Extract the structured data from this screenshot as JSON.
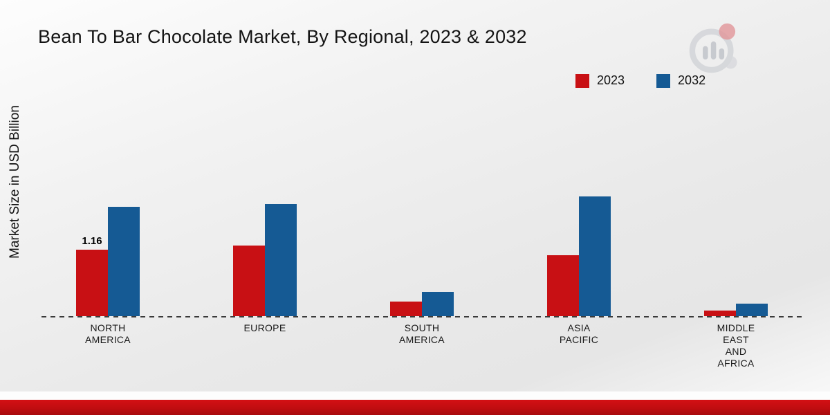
{
  "title": "Bean To Bar Chocolate Market, By Regional, 2023 & 2032",
  "ylabel": "Market Size in USD Billion",
  "legend": [
    {
      "label": "2023",
      "color": "#c81014"
    },
    {
      "label": "2032",
      "color": "#155a94"
    }
  ],
  "colors": {
    "accent_red": "#c81014",
    "accent_blue": "#155a94",
    "footer_red": "#c00d10"
  },
  "chart_data": {
    "type": "bar",
    "categories": [
      "NORTH AMERICA",
      "EUROPE",
      "SOUTH AMERICA",
      "ASIA PACIFIC",
      "MIDDLE EAST AND AFRICA"
    ],
    "series": [
      {
        "name": "2023",
        "color": "#c81014",
        "values": [
          1.16,
          1.23,
          0.25,
          1.06,
          0.1
        ]
      },
      {
        "name": "2032",
        "color": "#155a94",
        "values": [
          1.91,
          1.96,
          0.42,
          2.09,
          0.22
        ]
      }
    ],
    "annotations": [
      {
        "category_index": 0,
        "series_index": 0,
        "text": "1.16"
      }
    ],
    "title": "Bean To Bar Chocolate Market, By Regional, 2023 & 2032",
    "xlabel": "",
    "ylabel": "Market Size in USD Billion",
    "ylim": [
      0,
      2.4
    ],
    "grid": false,
    "legend_position": "top-right",
    "baseline_style": "dashed"
  }
}
